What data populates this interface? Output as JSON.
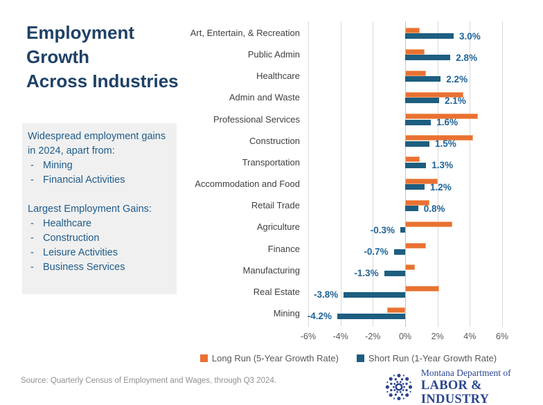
{
  "title_lines": [
    "Employment",
    "Growth",
    "Across Industries"
  ],
  "note_box": {
    "para1": "Widespread employment gains in 2024, apart from:",
    "para1_items": [
      "Mining",
      "Financial Activities"
    ],
    "para2": "Largest Employment Gains:",
    "para2_items": [
      "Healthcare",
      "Construction",
      "Leisure Activities",
      "Business Services"
    ]
  },
  "chart_data": {
    "type": "bar",
    "orientation": "horizontal",
    "categories": [
      "Art, Entertain, & Recreation",
      "Public Admin",
      "Healthcare",
      "Admin and Waste",
      "Professional Services",
      "Construction",
      "Transportation",
      "Accommodation and Food",
      "Retail Trade",
      "Agriculture",
      "Finance",
      "Manufacturing",
      "Real Estate",
      "Mining"
    ],
    "series": [
      {
        "name": "Long Run (5-Year Growth Rate)",
        "color": "#E97132",
        "values": [
          0.9,
          1.2,
          1.3,
          3.6,
          4.5,
          4.2,
          0.9,
          2.0,
          1.5,
          2.9,
          1.3,
          0.6,
          2.1,
          -1.1
        ]
      },
      {
        "name": "Short Run (1-Year Growth Rate)",
        "color": "#1D5E80",
        "values": [
          3.0,
          2.8,
          2.2,
          2.1,
          1.6,
          1.5,
          1.3,
          1.2,
          0.8,
          -0.3,
          -0.7,
          -1.3,
          -3.8,
          -4.2
        ],
        "labels": [
          "3.0%",
          "2.8%",
          "2.2%",
          "2.1%",
          "1.6%",
          "1.5%",
          "1.3%",
          "1.2%",
          "0.8%",
          "-0.3%",
          "-0.7%",
          "-1.3%",
          "-3.8%",
          "-4.2%"
        ]
      }
    ],
    "x_ticks": [
      {
        "label": "-6%",
        "value": -6
      },
      {
        "label": "-4%",
        "value": -4
      },
      {
        "label": "-2%",
        "value": -2
      },
      {
        "label": "0%",
        "value": 0
      },
      {
        "label": "2%",
        "value": 2
      },
      {
        "label": "4%",
        "value": 4
      },
      {
        "label": "6%",
        "value": 6
      }
    ],
    "xlim": [
      -6,
      6
    ],
    "gridlines": true,
    "legend_position": "bottom"
  },
  "source": "Source: Quarterly Census of Employment and Wages, through Q3 2024.",
  "logo": {
    "line1": "Montana Department of",
    "line2": "LABOR & INDUSTRY"
  },
  "colors": {
    "long_run": "#E97132",
    "short_run": "#1D5E80",
    "title": "#1F4166",
    "note_text": "#1F5C8B",
    "value_label": "#1F6499",
    "logo_navy": "#2B4590",
    "gridline": "#D9D9D9"
  }
}
